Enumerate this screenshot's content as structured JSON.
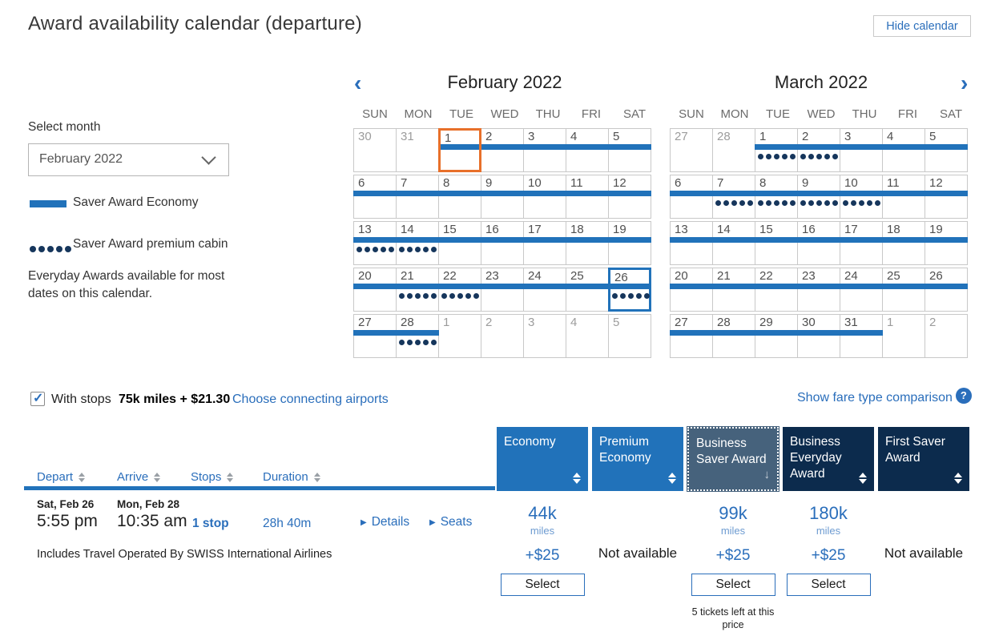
{
  "page": {
    "title": "Award availability calendar (departure)",
    "hide_calendar_label": "Hide calendar"
  },
  "sidebar": {
    "select_month_label": "Select month",
    "month_dropdown_value": "February 2022",
    "legend": {
      "bar_label": "Saver Award Economy",
      "dots_label": "Saver Award premium cabin"
    },
    "note": "Everyday Awards available for most dates on this calendar."
  },
  "icons": {
    "prev": "‹",
    "next": "›",
    "help": "?",
    "check": "✓",
    "details_arrow": "▶",
    "sort_desc": "↓"
  },
  "calendar": {
    "weekdays": [
      "SUN",
      "MON",
      "TUE",
      "WED",
      "THU",
      "FRI",
      "SAT"
    ],
    "months": [
      {
        "title": "February 2022",
        "weeks": [
          [
            {
              "d": "30",
              "muted": true
            },
            {
              "d": "31",
              "muted": true
            },
            {
              "d": "1",
              "bar": true,
              "sel": "orange"
            },
            {
              "d": "2",
              "bar": true
            },
            {
              "d": "3",
              "bar": true
            },
            {
              "d": "4",
              "bar": true
            },
            {
              "d": "5",
              "bar": true
            }
          ],
          [
            {
              "d": "6",
              "bar": true
            },
            {
              "d": "7",
              "bar": true
            },
            {
              "d": "8",
              "bar": true
            },
            {
              "d": "9",
              "bar": true
            },
            {
              "d": "10",
              "bar": true
            },
            {
              "d": "11",
              "bar": true
            },
            {
              "d": "12",
              "bar": true
            }
          ],
          [
            {
              "d": "13",
              "bar": true,
              "dots": true
            },
            {
              "d": "14",
              "bar": true,
              "dots": true
            },
            {
              "d": "15",
              "bar": true
            },
            {
              "d": "16",
              "bar": true
            },
            {
              "d": "17",
              "bar": true
            },
            {
              "d": "18",
              "bar": true
            },
            {
              "d": "19",
              "bar": true
            }
          ],
          [
            {
              "d": "20",
              "bar": true
            },
            {
              "d": "21",
              "bar": true,
              "dots": true
            },
            {
              "d": "22",
              "bar": true,
              "dots": true
            },
            {
              "d": "23",
              "bar": true
            },
            {
              "d": "24",
              "bar": true
            },
            {
              "d": "25",
              "bar": true
            },
            {
              "d": "26",
              "bar": true,
              "dots": true,
              "sel": "blue"
            }
          ],
          [
            {
              "d": "27",
              "bar": true
            },
            {
              "d": "28",
              "bar": true,
              "dots": true
            },
            {
              "d": "1",
              "muted": true
            },
            {
              "d": "2",
              "muted": true
            },
            {
              "d": "3",
              "muted": true
            },
            {
              "d": "4",
              "muted": true
            },
            {
              "d": "5",
              "muted": true
            }
          ]
        ]
      },
      {
        "title": "March 2022",
        "weeks": [
          [
            {
              "d": "27",
              "muted": true
            },
            {
              "d": "28",
              "muted": true
            },
            {
              "d": "1",
              "bar": true,
              "dots": true
            },
            {
              "d": "2",
              "bar": true,
              "dots": true
            },
            {
              "d": "3",
              "bar": true
            },
            {
              "d": "4",
              "bar": true
            },
            {
              "d": "5",
              "bar": true
            }
          ],
          [
            {
              "d": "6",
              "bar": true
            },
            {
              "d": "7",
              "bar": true,
              "dots": true
            },
            {
              "d": "8",
              "bar": true,
              "dots": true
            },
            {
              "d": "9",
              "bar": true,
              "dots": true
            },
            {
              "d": "10",
              "bar": true,
              "dots": true
            },
            {
              "d": "11",
              "bar": true
            },
            {
              "d": "12",
              "bar": true
            }
          ],
          [
            {
              "d": "13",
              "bar": true
            },
            {
              "d": "14",
              "bar": true
            },
            {
              "d": "15",
              "bar": true
            },
            {
              "d": "16",
              "bar": true
            },
            {
              "d": "17",
              "bar": true
            },
            {
              "d": "18",
              "bar": true
            },
            {
              "d": "19",
              "bar": true
            }
          ],
          [
            {
              "d": "20",
              "bar": true
            },
            {
              "d": "21",
              "bar": true
            },
            {
              "d": "22",
              "bar": true
            },
            {
              "d": "23",
              "bar": true
            },
            {
              "d": "24",
              "bar": true
            },
            {
              "d": "25",
              "bar": true
            },
            {
              "d": "26",
              "bar": true
            }
          ],
          [
            {
              "d": "27",
              "bar": true
            },
            {
              "d": "28",
              "bar": true
            },
            {
              "d": "29",
              "bar": true
            },
            {
              "d": "30",
              "bar": true
            },
            {
              "d": "31",
              "bar": true
            },
            {
              "d": "1",
              "muted": true
            },
            {
              "d": "2",
              "muted": true
            }
          ]
        ]
      }
    ]
  },
  "stops_bar": {
    "with_stops_label": "With stops",
    "checked": true,
    "price_summary": "75k miles + $21.30",
    "connecting_link": "Choose connecting airports",
    "fare_comparison_link": "Show fare type comparison"
  },
  "results_table": {
    "left_columns": [
      "Depart",
      "Arrive",
      "Stops",
      "Duration"
    ],
    "fare_columns": [
      {
        "label": "Economy",
        "style": "blue",
        "sort": "both"
      },
      {
        "label": "Premium Economy",
        "style": "blue",
        "sort": "both"
      },
      {
        "label": "Business Saver Award",
        "style": "slate",
        "sort": "desc",
        "selected": true
      },
      {
        "label": "Business Everyday Award",
        "style": "navy",
        "sort": "both"
      },
      {
        "label": "First Saver Award",
        "style": "navy",
        "sort": "both"
      }
    ],
    "row": {
      "depart_date": "Sat, Feb 26",
      "depart_time": "5:55 pm",
      "arrive_date": "Mon, Feb 28",
      "arrive_time": "10:35 am",
      "stops": "1 stop",
      "duration": "28h 40m",
      "details_label": "Details",
      "seats_label": "Seats",
      "operated_by": "Includes Travel Operated By SWISS International Airlines",
      "fares": [
        {
          "available": true,
          "miles": "44k",
          "miles_unit": "miles",
          "fees": "+$25",
          "select_label": "Select"
        },
        {
          "available": false,
          "not_available_label": "Not available"
        },
        {
          "available": true,
          "miles": "99k",
          "miles_unit": "miles",
          "fees": "+$25",
          "select_label": "Select",
          "note": "5 tickets left at this price"
        },
        {
          "available": true,
          "miles": "180k",
          "miles_unit": "miles",
          "fees": "+$25",
          "select_label": "Select"
        },
        {
          "available": false,
          "not_available_label": "Not available"
        }
      ]
    }
  },
  "colors": {
    "bar_blue": "#2172ba",
    "dot_navy": "#16365c",
    "link_blue": "#2a6ebb",
    "header_slate": "#46627c",
    "header_navy": "#0c2b4d",
    "selected_orange": "#e8702a"
  }
}
